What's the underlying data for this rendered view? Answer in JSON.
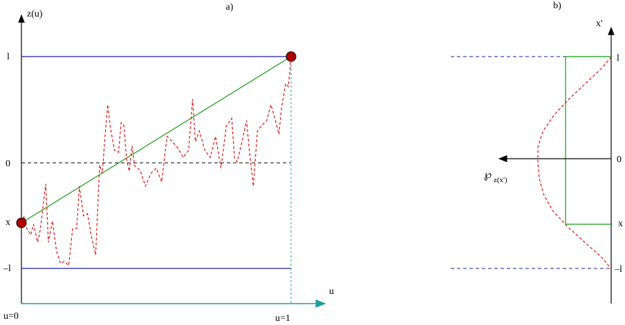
{
  "panel_a": {
    "title": "a)",
    "y_axis_label": "z(u)",
    "x_axis_label": "u",
    "y_ticks": {
      "top": "l",
      "middle": "0",
      "start": "x",
      "bottom": "–l"
    },
    "x_ticks": {
      "start": "u=0",
      "end": "u=1"
    },
    "colors": {
      "boundary": "#1a1aa0",
      "path": "#e01010",
      "straight": "#119911",
      "axis_u": "#1aa0a0",
      "marker": "#b00000"
    },
    "path_points": [
      [
        0.0,
        -0.57
      ],
      [
        0.01,
        -0.5
      ],
      [
        0.02,
        -0.62
      ],
      [
        0.035,
        -0.68
      ],
      [
        0.045,
        -0.58
      ],
      [
        0.06,
        -0.75
      ],
      [
        0.07,
        -0.63
      ],
      [
        0.09,
        -0.2
      ],
      [
        0.1,
        -0.75
      ],
      [
        0.115,
        -0.55
      ],
      [
        0.13,
        -0.83
      ],
      [
        0.145,
        -0.95
      ],
      [
        0.16,
        -0.93
      ],
      [
        0.175,
        -0.97
      ],
      [
        0.19,
        -0.62
      ],
      [
        0.205,
        -0.62
      ],
      [
        0.215,
        -0.22
      ],
      [
        0.23,
        -0.5
      ],
      [
        0.245,
        -0.48
      ],
      [
        0.26,
        -0.7
      ],
      [
        0.275,
        -0.87
      ],
      [
        0.29,
        -0.02
      ],
      [
        0.3,
        -0.1
      ],
      [
        0.31,
        0.25
      ],
      [
        0.32,
        0.55
      ],
      [
        0.33,
        0.33
      ],
      [
        0.345,
        0.12
      ],
      [
        0.36,
        0.1
      ],
      [
        0.37,
        0.38
      ],
      [
        0.38,
        0.35
      ],
      [
        0.39,
        0.03
      ],
      [
        0.4,
        -0.08
      ],
      [
        0.41,
        0.16
      ],
      [
        0.42,
        -0.03
      ],
      [
        0.44,
        -0.07
      ],
      [
        0.46,
        -0.22
      ],
      [
        0.48,
        -0.1
      ],
      [
        0.5,
        -0.05
      ],
      [
        0.52,
        -0.18
      ],
      [
        0.54,
        0.25
      ],
      [
        0.56,
        0.2
      ],
      [
        0.58,
        0.14
      ],
      [
        0.6,
        0.05
      ],
      [
        0.62,
        0.12
      ],
      [
        0.635,
        0.6
      ],
      [
        0.645,
        0.2
      ],
      [
        0.66,
        0.3
      ],
      [
        0.68,
        0.12
      ],
      [
        0.7,
        0.05
      ],
      [
        0.72,
        0.25
      ],
      [
        0.74,
        -0.05
      ],
      [
        0.76,
        0.35
      ],
      [
        0.78,
        0.42
      ],
      [
        0.79,
        0.05
      ],
      [
        0.8,
        0.01
      ],
      [
        0.82,
        0.22
      ],
      [
        0.835,
        0.4
      ],
      [
        0.845,
        0.12
      ],
      [
        0.86,
        -0.22
      ],
      [
        0.875,
        0.3
      ],
      [
        0.89,
        0.35
      ],
      [
        0.91,
        0.4
      ],
      [
        0.925,
        0.55
      ],
      [
        0.94,
        0.42
      ],
      [
        0.955,
        0.27
      ],
      [
        0.965,
        0.52
      ],
      [
        0.98,
        0.75
      ],
      [
        0.99,
        0.72
      ],
      [
        1.0,
        1.0
      ]
    ]
  },
  "panel_b": {
    "title": "b)",
    "axis_label": "x'",
    "ticks": {
      "top": "l",
      "middle": "0",
      "x": "x",
      "bottom": "–l"
    },
    "density_label": "℘",
    "density_subscript": "z(x')",
    "colors": {
      "boundary": "#1a1aa0",
      "density": "#e01010",
      "rect": "#119911"
    },
    "density_points": [
      [
        1.0,
        0.0
      ],
      [
        0.9,
        0.12
      ],
      [
        0.75,
        0.35
      ],
      [
        0.6,
        0.58
      ],
      [
        0.45,
        0.78
      ],
      [
        0.3,
        0.93
      ],
      [
        0.15,
        1.0
      ],
      [
        0.0,
        1.0
      ],
      [
        -0.15,
        0.98
      ],
      [
        -0.3,
        0.92
      ],
      [
        -0.45,
        0.8
      ],
      [
        -0.6,
        0.6
      ],
      [
        -0.75,
        0.36
      ],
      [
        -0.9,
        0.12
      ],
      [
        -1.0,
        0.0
      ]
    ]
  }
}
